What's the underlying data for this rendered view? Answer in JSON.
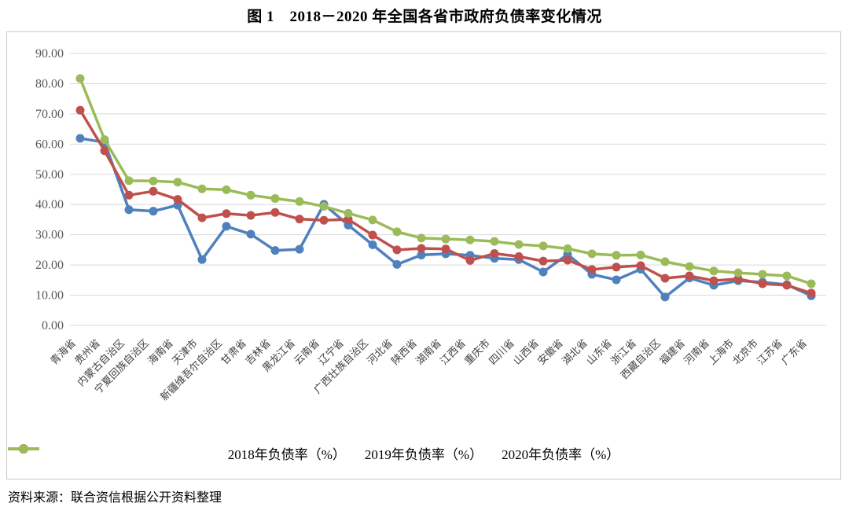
{
  "figure": {
    "title": "图 1　2018－2020 年全国各省市政府负债率变化情况",
    "source": "资料来源：联合资信根据公开资料整理"
  },
  "chart_data": {
    "type": "line",
    "title": "图1 2018-2020年全国各省市政府负债率变化情况",
    "categories": [
      "青海省",
      "贵州省",
      "内蒙古自治区",
      "宁夏回族自治区",
      "海南省",
      "天津市",
      "新疆维吾尔自治区",
      "甘肃省",
      "吉林省",
      "黑龙江省",
      "云南省",
      "辽宁省",
      "广西壮族自治区",
      "河北省",
      "陕西省",
      "湖南省",
      "江西省",
      "重庆市",
      "四川省",
      "山西省",
      "安徽省",
      "湖北省",
      "山东省",
      "浙江省",
      "西藏自治区",
      "福建省",
      "河南省",
      "上海市",
      "北京市",
      "江苏省",
      "广东省"
    ],
    "series": [
      {
        "name": "2018年负债率（%）",
        "color": "#4F81BD",
        "values": [
          61.9,
          60.6,
          38.3,
          37.8,
          39.8,
          21.8,
          32.8,
          30.2,
          24.8,
          25.2,
          40.1,
          33.2,
          26.7,
          20.2,
          23.3,
          23.7,
          23.2,
          22.2,
          21.8,
          17.7,
          23.5,
          16.9,
          15.1,
          18.6,
          9.4,
          15.7,
          13.3,
          14.8,
          14.3,
          13.5,
          9.8
        ]
      },
      {
        "name": "2019年负债率（%）",
        "color": "#C0504D",
        "values": [
          71.2,
          57.8,
          43.1,
          44.4,
          41.7,
          35.6,
          37.0,
          36.4,
          37.4,
          35.2,
          34.8,
          35.1,
          29.9,
          25.0,
          25.5,
          25.3,
          21.5,
          23.8,
          22.8,
          21.3,
          21.6,
          18.5,
          19.3,
          19.8,
          15.6,
          16.4,
          14.8,
          15.4,
          13.8,
          13.3,
          10.7
        ]
      },
      {
        "name": "2020年负债率（%）",
        "color": "#9BBB59",
        "values": [
          81.7,
          61.5,
          47.9,
          47.8,
          47.4,
          45.2,
          44.9,
          43.1,
          42.0,
          41.0,
          39.4,
          37.1,
          34.9,
          31.0,
          28.9,
          28.6,
          28.3,
          27.8,
          26.8,
          26.3,
          25.4,
          23.7,
          23.2,
          23.3,
          21.1,
          19.5,
          18.0,
          17.4,
          16.9,
          16.4,
          13.8
        ]
      }
    ],
    "xlabel": "",
    "ylabel": "",
    "ylim": [
      0,
      90
    ],
    "y_tick_step": 10,
    "y_tick_labels": [
      "0.00",
      "10.00",
      "20.00",
      "30.00",
      "40.00",
      "50.00",
      "60.00",
      "70.00",
      "80.00",
      "90.00"
    ],
    "grid": "horizontal",
    "gridline_color": "#d9d9d9",
    "axis_text_color": "#595959",
    "legend_position": "bottom",
    "x_label_rotation": 45
  }
}
